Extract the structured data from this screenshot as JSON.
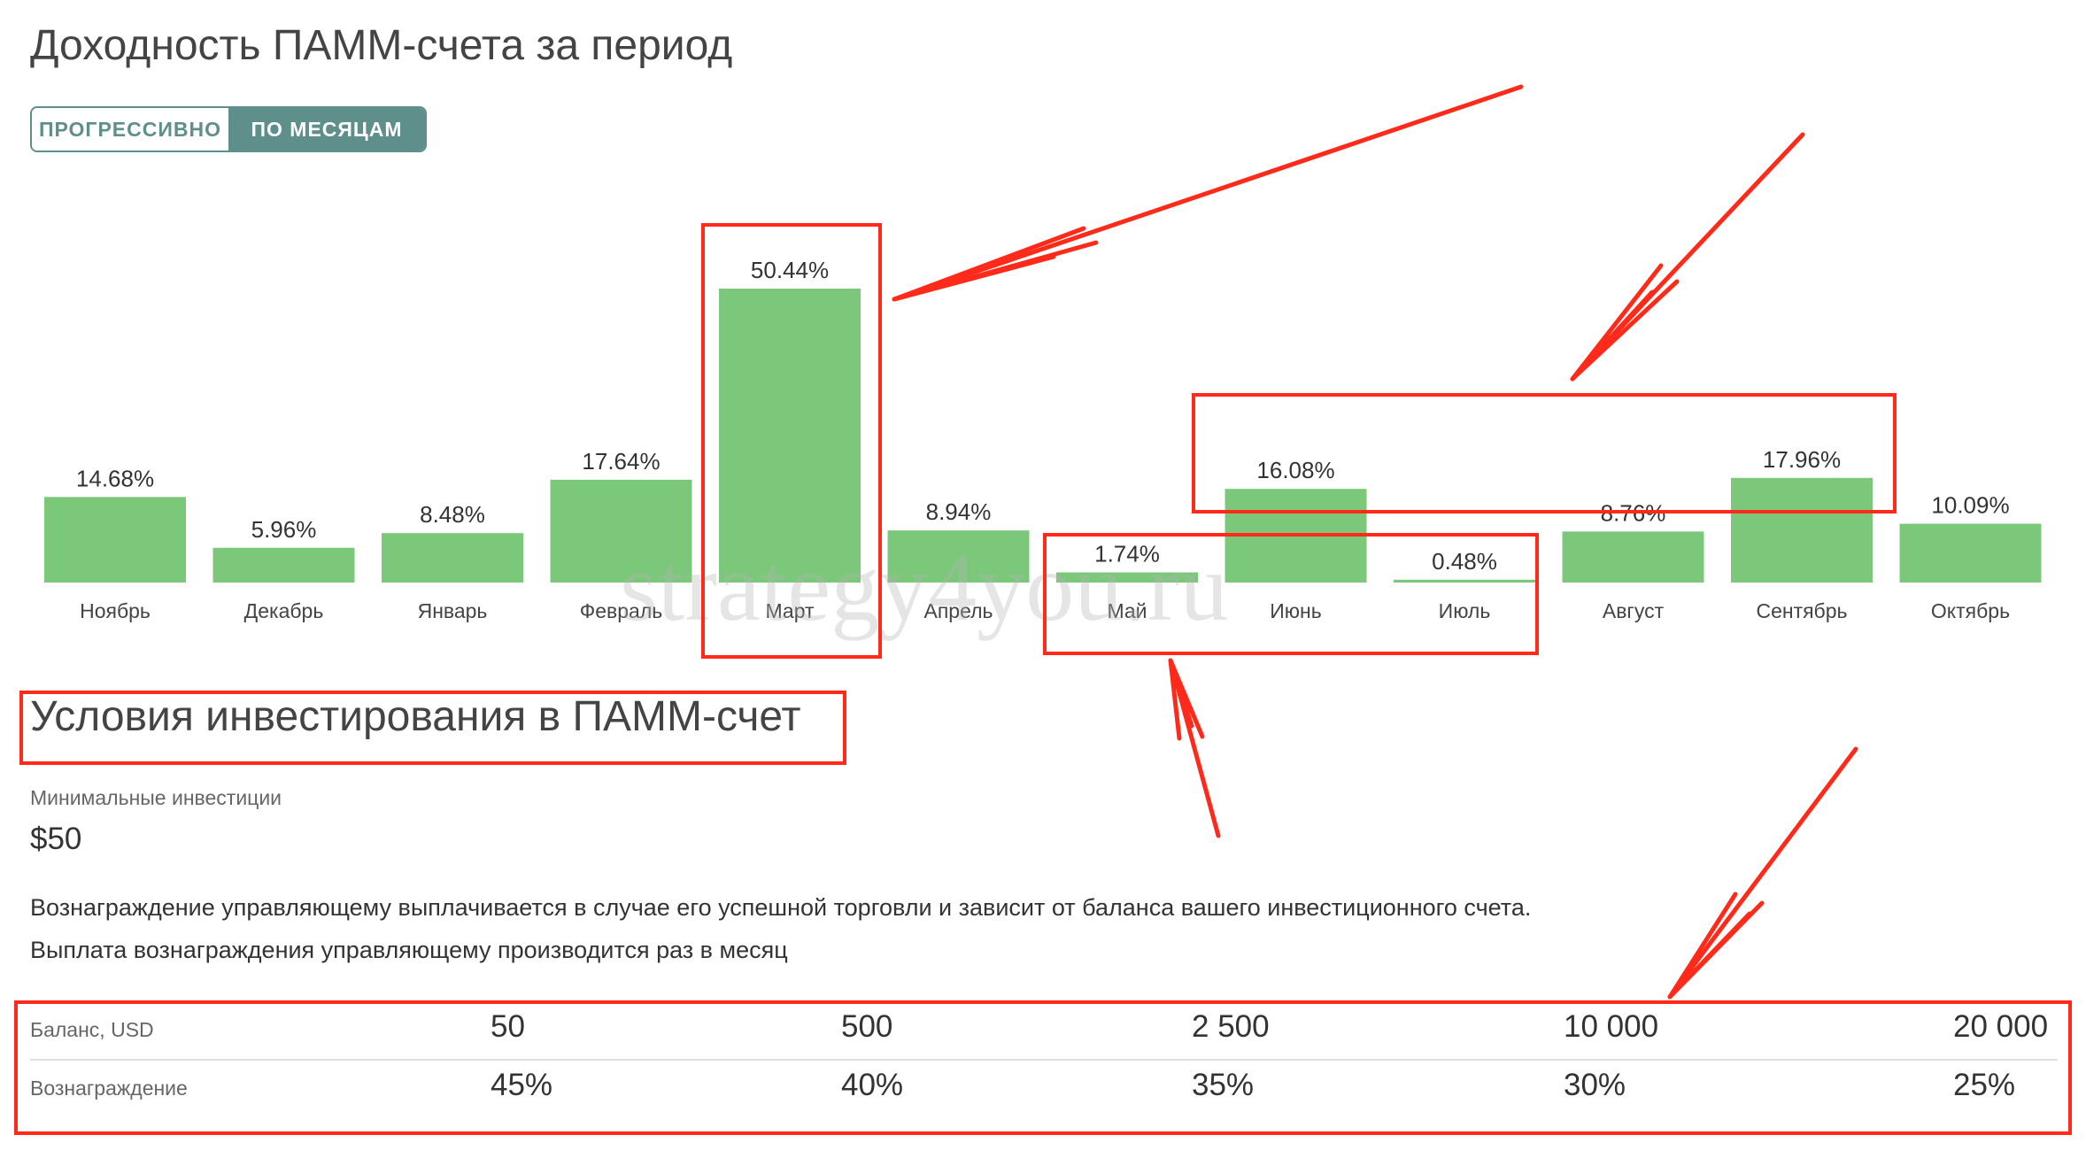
{
  "header": {
    "title": "Доходность ПАММ-счета за период",
    "toggle": {
      "option_progressive": "ПРОГРЕССИВНО",
      "option_monthly": "ПО МЕСЯЦАМ",
      "selected": "ПО МЕСЯЦАМ"
    }
  },
  "chart_data": {
    "type": "bar",
    "categories": [
      "Ноябрь",
      "Декабрь",
      "Январь",
      "Февраль",
      "Март",
      "Апрель",
      "Май",
      "Июнь",
      "Июль",
      "Август",
      "Сентябрь",
      "Октябрь"
    ],
    "values": [
      14.68,
      5.96,
      8.48,
      17.64,
      50.44,
      8.94,
      1.74,
      16.08,
      0.48,
      8.76,
      17.96,
      10.09
    ],
    "value_labels": [
      "14.68%",
      "5.96%",
      "8.48%",
      "17.64%",
      "50.44%",
      "8.94%",
      "1.74%",
      "16.08%",
      "0.48%",
      "8.76%",
      "17.96%",
      "10.09%"
    ],
    "bar_color": "#7bc87b",
    "grid": false
  },
  "investment": {
    "title": "Условия инвестирования в ПАММ-счет",
    "min_label": "Минимальные инвестиции",
    "min_value": "$50",
    "para1": "Вознаграждение управляющему выплачивается в случае его успешной торговли и зависит от баланса вашего инвестиционного счета.",
    "para2": "Выплата вознаграждения управляющему производится раз в месяц",
    "table": {
      "row1_label": "Баланс, USD",
      "row1_values": [
        "50",
        "500",
        "2 500",
        "10 000",
        "20 000"
      ],
      "row2_label": "Вознаграждение",
      "row2_values": [
        "45%",
        "40%",
        "35%",
        "30%",
        "25%"
      ]
    }
  },
  "watermark": "strategy4you.ru",
  "colors": {
    "accent": "#5f8f8a",
    "annotation": "#ff2a1a",
    "bar": "#7bc87b"
  }
}
